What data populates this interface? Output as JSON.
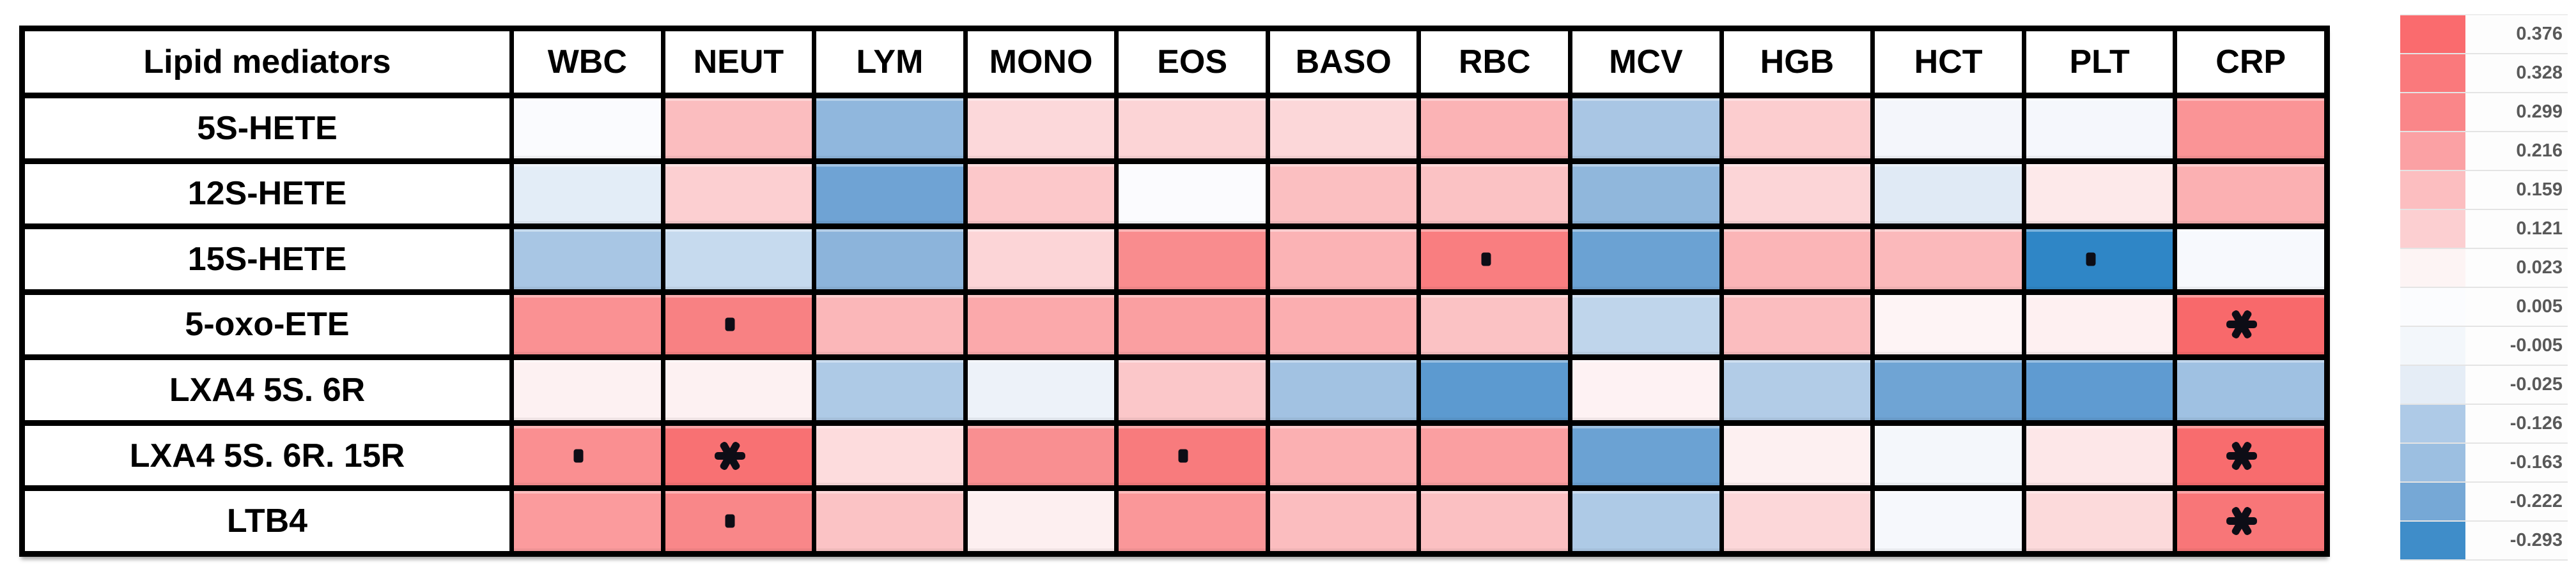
{
  "figure": {
    "background": "#FFFFFF",
    "grid_color": "#000000",
    "header_bg": "#FFFFFF",
    "header_text_color": "#000000",
    "legend_text_color": "#595959"
  },
  "table": {
    "corner_label": "Lipid mediators",
    "columns": [
      "WBC",
      "NEUT",
      "LYM",
      "MONO",
      "EOS",
      "BASO",
      "RBC",
      "MCV",
      "HGB",
      "HCT",
      "PLT",
      "CRP"
    ],
    "rows": [
      "5S-HETE",
      "12S-HETE",
      "15S-HETE",
      "5-oxo-ETE",
      "LXA4 5S. 6R",
      "LXA4 5S. 6R. 15R",
      "LTB4"
    ]
  },
  "chart_data": {
    "type": "heatmap",
    "title": "",
    "x_categories": [
      "WBC",
      "NEUT",
      "LYM",
      "MONO",
      "EOS",
      "BASO",
      "RBC",
      "MCV",
      "HGB",
      "HCT",
      "PLT",
      "CRP"
    ],
    "y_categories": [
      "5S-HETE",
      "12S-HETE",
      "15S-HETE",
      "5-oxo-ETE",
      "LXA4 5S. 6R",
      "LXA4 5S. 6R. 15R",
      "LTB4"
    ],
    "value_range": [
      -0.293,
      0.376
    ],
    "estimated_values_from_colorscale": true,
    "legend_position": "right",
    "legend": {
      "labels": [
        "0.376",
        "0.328",
        "0.299",
        "0.216",
        "0.159",
        "0.121",
        "0.023",
        "0.005",
        "-0.005",
        "-0.025",
        "-0.126",
        "-0.163",
        "-0.222",
        "-0.293"
      ],
      "colors": [
        "#FA6B6E",
        "#FA797C",
        "#FA8689",
        "#FBA1A4",
        "#FCBEC0",
        "#FCCFD1",
        "#FDF4F4",
        "#FBFCFE",
        "#F3F7FB",
        "#E5EDF6",
        "#AECAE7",
        "#9CBFE1",
        "#76A8D6",
        "#3F8DC9"
      ]
    },
    "marker_glyphs": {
      "dot": "small-dot-marker",
      "star": "asterisk-marker"
    },
    "cells": [
      [
        {
          "v": 0.0,
          "c": "#FAFBFE",
          "m": ""
        },
        {
          "v": 0.16,
          "c": "#FBBDBF",
          "m": ""
        },
        {
          "v": -0.17,
          "c": "#90B7DD",
          "m": ""
        },
        {
          "v": 0.1,
          "c": "#FCD8DA",
          "m": ""
        },
        {
          "v": 0.11,
          "c": "#FCD4D6",
          "m": ""
        },
        {
          "v": 0.1,
          "c": "#FCD7D9",
          "m": ""
        },
        {
          "v": 0.18,
          "c": "#FBB3B5",
          "m": ""
        },
        {
          "v": -0.14,
          "c": "#A9C6E4",
          "m": ""
        },
        {
          "v": 0.12,
          "c": "#FCCDCF",
          "m": ""
        },
        {
          "v": -0.01,
          "c": "#F4F6FB",
          "m": ""
        },
        {
          "v": -0.01,
          "c": "#F5F7FC",
          "m": ""
        },
        {
          "v": 0.26,
          "c": "#FA9496",
          "m": ""
        }
      ],
      [
        {
          "v": -0.04,
          "c": "#E3EDF7",
          "m": ""
        },
        {
          "v": 0.12,
          "c": "#FCCFD1",
          "m": ""
        },
        {
          "v": -0.23,
          "c": "#6FA3D4",
          "m": ""
        },
        {
          "v": 0.13,
          "c": "#FCC8CA",
          "m": ""
        },
        {
          "v": 0.0,
          "c": "#FBFBFE",
          "m": ""
        },
        {
          "v": 0.15,
          "c": "#FBBFC1",
          "m": ""
        },
        {
          "v": 0.14,
          "c": "#FBC2C4",
          "m": ""
        },
        {
          "v": -0.17,
          "c": "#90B7DC",
          "m": ""
        },
        {
          "v": 0.1,
          "c": "#FCD5D7",
          "m": ""
        },
        {
          "v": -0.03,
          "c": "#E0EAF5",
          "m": ""
        },
        {
          "v": 0.06,
          "c": "#FDE9EA",
          "m": ""
        },
        {
          "v": 0.19,
          "c": "#FBB0B2",
          "m": ""
        }
      ],
      [
        {
          "v": -0.14,
          "c": "#A8C6E4",
          "m": ""
        },
        {
          "v": -0.1,
          "c": "#C6DAEE",
          "m": ""
        },
        {
          "v": -0.18,
          "c": "#8CB4DB",
          "m": ""
        },
        {
          "v": 0.1,
          "c": "#FCD5D7",
          "m": ""
        },
        {
          "v": 0.3,
          "c": "#F98C8E",
          "m": ""
        },
        {
          "v": 0.18,
          "c": "#FBB3B5",
          "m": ""
        },
        {
          "v": 0.33,
          "c": "#F97E80",
          "m": "dot"
        },
        {
          "v": -0.24,
          "c": "#6BA2D3",
          "m": ""
        },
        {
          "v": 0.18,
          "c": "#FBB5B7",
          "m": ""
        },
        {
          "v": 0.17,
          "c": "#FBB9BB",
          "m": ""
        },
        {
          "v": -0.29,
          "c": "#2F86C6",
          "m": "dot"
        },
        {
          "v": 0.0,
          "c": "#F7F9FD",
          "m": ""
        }
      ],
      [
        {
          "v": 0.26,
          "c": "#FA9193",
          "m": ""
        },
        {
          "v": 0.32,
          "c": "#F88183",
          "m": "dot"
        },
        {
          "v": 0.17,
          "c": "#FBB7B9",
          "m": ""
        },
        {
          "v": 0.21,
          "c": "#FBA9AB",
          "m": ""
        },
        {
          "v": 0.23,
          "c": "#FA9FA1",
          "m": ""
        },
        {
          "v": 0.2,
          "c": "#FBAEB0",
          "m": ""
        },
        {
          "v": 0.14,
          "c": "#FBC2C4",
          "m": ""
        },
        {
          "v": -0.11,
          "c": "#BFD5EB",
          "m": ""
        },
        {
          "v": 0.16,
          "c": "#FBBDBF",
          "m": ""
        },
        {
          "v": 0.02,
          "c": "#FEF4F5",
          "m": ""
        },
        {
          "v": 0.03,
          "c": "#FEF0F1",
          "m": ""
        },
        {
          "v": 0.38,
          "c": "#F8696B",
          "m": "star"
        }
      ],
      [
        {
          "v": 0.03,
          "c": "#FDF1F2",
          "m": ""
        },
        {
          "v": 0.03,
          "c": "#FDF1F2",
          "m": ""
        },
        {
          "v": -0.13,
          "c": "#AECAE6",
          "m": ""
        },
        {
          "v": -0.02,
          "c": "#EDF2F9",
          "m": ""
        },
        {
          "v": 0.13,
          "c": "#FBC7C9",
          "m": ""
        },
        {
          "v": -0.15,
          "c": "#A2C2E2",
          "m": ""
        },
        {
          "v": -0.26,
          "c": "#5C9AD0",
          "m": ""
        },
        {
          "v": 0.02,
          "c": "#FEF2F3",
          "m": ""
        },
        {
          "v": -0.13,
          "c": "#B2CCE7",
          "m": ""
        },
        {
          "v": -0.23,
          "c": "#6FA4D4",
          "m": ""
        },
        {
          "v": -0.26,
          "c": "#5F9BD1",
          "m": ""
        },
        {
          "v": -0.16,
          "c": "#9FC1E2",
          "m": ""
        }
      ],
      [
        {
          "v": 0.27,
          "c": "#FA8F91",
          "m": "dot"
        },
        {
          "v": 0.36,
          "c": "#F87173",
          "m": "star"
        },
        {
          "v": 0.08,
          "c": "#FDDCDD",
          "m": ""
        },
        {
          "v": 0.28,
          "c": "#F98F91",
          "m": ""
        },
        {
          "v": 0.33,
          "c": "#F87B7D",
          "m": "dot"
        },
        {
          "v": 0.19,
          "c": "#FBB0B2",
          "m": ""
        },
        {
          "v": 0.23,
          "c": "#FA9FA1",
          "m": ""
        },
        {
          "v": -0.24,
          "c": "#6BA2D3",
          "m": ""
        },
        {
          "v": 0.03,
          "c": "#FDF0F1",
          "m": ""
        },
        {
          "v": -0.01,
          "c": "#F4F7FB",
          "m": ""
        },
        {
          "v": 0.06,
          "c": "#FDE7E8",
          "m": ""
        },
        {
          "v": 0.37,
          "c": "#F86C6E",
          "m": "star"
        }
      ],
      [
        {
          "v": 0.24,
          "c": "#FB9B9D",
          "m": ""
        },
        {
          "v": 0.3,
          "c": "#F98789",
          "m": "dot"
        },
        {
          "v": 0.14,
          "c": "#FBC3C5",
          "m": ""
        },
        {
          "v": 0.04,
          "c": "#FDEFF0",
          "m": ""
        },
        {
          "v": 0.25,
          "c": "#FA9799",
          "m": ""
        },
        {
          "v": 0.16,
          "c": "#FBBDBF",
          "m": ""
        },
        {
          "v": 0.15,
          "c": "#FBC0C2",
          "m": ""
        },
        {
          "v": -0.13,
          "c": "#AECAE6",
          "m": ""
        },
        {
          "v": 0.1,
          "c": "#FCD7D9",
          "m": ""
        },
        {
          "v": 0.0,
          "c": "#F6F8FC",
          "m": ""
        },
        {
          "v": 0.1,
          "c": "#FCDADB",
          "m": ""
        },
        {
          "v": 0.34,
          "c": "#F87678",
          "m": "star"
        }
      ]
    ]
  }
}
